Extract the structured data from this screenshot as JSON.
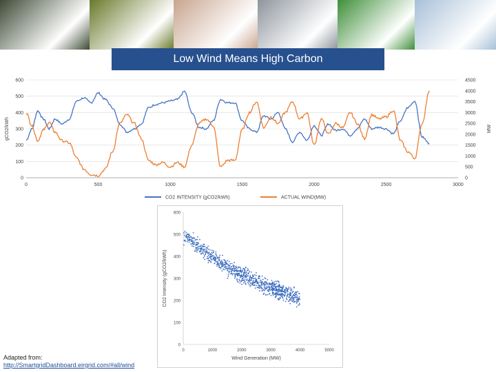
{
  "slide": {
    "title": "Low Wind Means High Carbon",
    "source_label": "Adapted from:",
    "source_url": "http://SmartgridDashboard.eirgrid.com/#all/wind"
  },
  "photos": [
    {
      "name": "dairy-cows-photo",
      "color": "#3e4a36"
    },
    {
      "name": "vegetables-photo",
      "color": "#6a7a2c"
    },
    {
      "name": "pigs-photo",
      "color": "#c9a58f"
    },
    {
      "name": "tanker-truck-photo",
      "color": "#8e959c"
    },
    {
      "name": "green-machinery-photo",
      "color": "#3f8f3a"
    },
    {
      "name": "biogas-plant-photo",
      "color": "#a8c0d8"
    }
  ],
  "colors": {
    "co2": "#4472c4",
    "wind": "#ed7d31",
    "scatter": "#3f6fc0",
    "grid": "#d9d9d9"
  },
  "chart_data": [
    {
      "type": "line",
      "title": "",
      "xlabel": "",
      "ylabel": "gCO2/kWh",
      "y2label": "MW",
      "xlim": [
        0,
        3000
      ],
      "ylim": [
        0,
        600
      ],
      "y2lim": [
        0,
        4500
      ],
      "x_ticks": [
        "0",
        "500",
        "1000",
        "1500",
        "2000",
        "2500",
        "3000"
      ],
      "y_ticks": [
        "0",
        "100",
        "200",
        "300",
        "400",
        "500",
        "600"
      ],
      "y2_ticks": [
        "0",
        "500",
        "1000",
        "1500",
        "2000",
        "2500",
        "3000",
        "3500",
        "4000",
        "4500"
      ],
      "legend_position": "bottom",
      "series": [
        {
          "name": "CO2 INTENSITY (gCO2/kWh)",
          "axis": "left",
          "x": [
            0,
            40,
            80,
            120,
            160,
            200,
            250,
            300,
            350,
            400,
            450,
            500,
            550,
            600,
            650,
            700,
            750,
            800,
            850,
            900,
            950,
            1000,
            1050,
            1100,
            1150,
            1200,
            1250,
            1300,
            1350,
            1400,
            1450,
            1500,
            1550,
            1600,
            1650,
            1700,
            1750,
            1800,
            1850,
            1900,
            1950,
            2000,
            2050,
            2100,
            2150,
            2200,
            2250,
            2300,
            2350,
            2400,
            2450,
            2500,
            2550,
            2600,
            2650,
            2700,
            2750,
            2800
          ],
          "values": [
            230,
            300,
            410,
            360,
            300,
            360,
            330,
            360,
            470,
            490,
            460,
            520,
            480,
            430,
            330,
            280,
            300,
            330,
            430,
            450,
            460,
            470,
            480,
            530,
            400,
            310,
            300,
            350,
            480,
            460,
            460,
            350,
            300,
            280,
            380,
            360,
            400,
            300,
            220,
            280,
            230,
            320,
            260,
            330,
            290,
            300,
            260,
            300,
            360,
            300,
            310,
            300,
            270,
            350,
            430,
            470,
            250,
            210
          ]
        },
        {
          "name": "ACTUAL WIND(MW)",
          "axis": "right",
          "x": [
            0,
            40,
            80,
            120,
            160,
            200,
            250,
            300,
            350,
            400,
            450,
            500,
            550,
            600,
            650,
            700,
            750,
            800,
            850,
            900,
            950,
            1000,
            1050,
            1100,
            1150,
            1200,
            1250,
            1300,
            1350,
            1400,
            1450,
            1500,
            1550,
            1600,
            1650,
            1700,
            1750,
            1800,
            1850,
            1900,
            1950,
            2000,
            2050,
            2100,
            2150,
            2200,
            2250,
            2300,
            2350,
            2400,
            2450,
            2500,
            2550,
            2600,
            2650,
            2700,
            2750,
            2800
          ],
          "values": [
            3000,
            2400,
            1700,
            2200,
            2550,
            2100,
            1700,
            1600,
            900,
            400,
            150,
            100,
            400,
            1200,
            2500,
            2900,
            2500,
            1800,
            800,
            600,
            700,
            500,
            700,
            500,
            1500,
            2500,
            2700,
            2400,
            500,
            800,
            800,
            2200,
            3000,
            3500,
            2300,
            2800,
            2500,
            3000,
            3500,
            2700,
            3000,
            1500,
            2700,
            2000,
            2500,
            2300,
            3000,
            2500,
            1800,
            2900,
            2700,
            2800,
            3100,
            1700,
            1200,
            900,
            2500,
            4000
          ]
        }
      ]
    },
    {
      "type": "scatter",
      "title": "",
      "xlabel": "Wind Generation (MW)",
      "ylabel": "CO2 Intensity (gCO2/kWh)",
      "xlim": [
        0,
        5000
      ],
      "ylim": [
        0,
        600
      ],
      "x_ticks": [
        "0",
        "1000",
        "2000",
        "3000",
        "4000",
        "5000"
      ],
      "y_ticks": [
        "0",
        "100",
        "200",
        "300",
        "400",
        "500",
        "600"
      ],
      "trend": {
        "x": [
          0,
          500,
          1000,
          1500,
          2000,
          2500,
          3000,
          3500,
          4000
        ],
        "y": [
          500,
          445,
          395,
          350,
          315,
          285,
          255,
          230,
          210
        ],
        "spread": 55,
        "count": 900
      }
    }
  ]
}
